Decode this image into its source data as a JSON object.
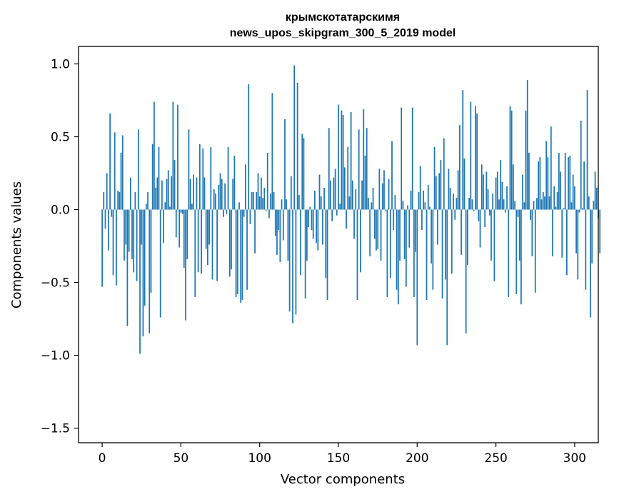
{
  "chart_data": {
    "type": "bar",
    "title_line1": "крымскотатарскимя",
    "title_line2": "news_upos_skipgram_300_5_2019 model",
    "xlabel": "Vector components",
    "ylabel": "Components values",
    "xlim": [
      -15,
      315
    ],
    "ylim": [
      -1.6,
      1.12
    ],
    "xticks": [
      0,
      50,
      100,
      150,
      200,
      250,
      300
    ],
    "xtick_labels": [
      "0",
      "50",
      "100",
      "150",
      "200",
      "250",
      "300"
    ],
    "yticks": [
      -1.5,
      -1.0,
      -0.5,
      0.0,
      0.5,
      1.0
    ],
    "ytick_labels": [
      "−1.5",
      "−1.0",
      "−0.5",
      "0.0",
      "0.5",
      "1.0"
    ],
    "bar_color": "#1f77b4",
    "values": [
      -0.53,
      0.12,
      -0.13,
      0.25,
      -0.28,
      0.66,
      -0.05,
      -0.45,
      0.53,
      -0.52,
      0.13,
      0.12,
      0.39,
      0.51,
      -0.35,
      -0.24,
      -0.8,
      -0.29,
      0.22,
      -0.34,
      -0.43,
      0.12,
      -0.49,
      0.55,
      -0.99,
      -0.24,
      -0.87,
      -0.66,
      0.04,
      0.12,
      -0.85,
      -0.57,
      0.45,
      0.74,
      0.15,
      0.22,
      0.43,
      -0.74,
      0.2,
      -0.23,
      0.05,
      0.21,
      0.27,
      0.02,
      0.23,
      0.74,
      0.34,
      -0.19,
      0.72,
      -0.26,
      -0.02,
      -0.03,
      -0.4,
      -0.76,
      -0.34,
      0.55,
      0.21,
      0.04,
      0.24,
      -0.6,
      0.22,
      -0.43,
      0.45,
      -0.44,
      0.42,
      0.22,
      -0.27,
      -0.38,
      -0.24,
      0.43,
      -0.48,
      0.14,
      0.11,
      -0.49,
      0.17,
      0.25,
      0.21,
      -0.05,
      0.18,
      -0.03,
      0.43,
      -0.46,
      -0.41,
      0.21,
      0.37,
      -0.6,
      -0.58,
      0.05,
      -0.64,
      -0.62,
      -0.05,
      0.31,
      -0.55,
      0.86,
      -0.1,
      0.12,
      0.12,
      -0.3,
      0.12,
      0.25,
      0.09,
      0.22,
      0.08,
      0.15,
      -0.01,
      0.39,
      -0.06,
      0.11,
      0.8,
      0.12,
      -0.18,
      -0.31,
      -0.14,
      -0.36,
      0.07,
      -0.21,
      0.62,
      0.07,
      -0.35,
      -0.7,
      0.23,
      -0.78,
      0.99,
      -0.72,
      0.87,
      0.1,
      -0.45,
      0.52,
      0.49,
      -0.61,
      -0.35,
      -0.12,
      0.02,
      -0.14,
      -0.2,
      0.13,
      -0.23,
      -0.28,
      0.24,
      0.09,
      -0.24,
      0.15,
      -0.47,
      -0.62,
      0.56,
      0.2,
      -0.08,
      0.22,
      0.28,
      -0.04,
      0.72,
      0.04,
      0.68,
      0.65,
      0.29,
      -0.13,
      0.43,
      0.09,
      0.67,
      0.2,
      -0.2,
      0.14,
      -0.62,
      0.55,
      -0.43,
      0.2,
      0.69,
      0.37,
      0.56,
      0.08,
      -0.32,
      0.05,
      0.15,
      -0.2,
      -0.28,
      -0.27,
      0.28,
      -0.35,
      0.18,
      0.27,
      -0.01,
      -0.6,
      0.21,
      -0.47,
      0.47,
      -0.14,
      0.1,
      -0.55,
      -0.65,
      -0.35,
      0.7,
      0.06,
      -0.34,
      -0.53,
      0.03,
      -0.26,
      0.13,
      0.7,
      -0.6,
      -0.29,
      -0.93,
      0.12,
      0.3,
      -0.14,
      0.13,
      0.05,
      -0.62,
      0.17,
      0.02,
      -0.37,
      -0.55,
      0.43,
      0.23,
      -0.24,
      0.25,
      0.34,
      -0.61,
      0.49,
      -0.48,
      -0.93,
      0.28,
      0.15,
      -0.44,
      0.11,
      -0.07,
      0.08,
      0.27,
      0.58,
      -0.31,
      0.82,
      0.35,
      -0.85,
      -0.38,
      0.08,
      0.74,
      0.07,
      -0.01,
      0.71,
      0.66,
      -0.08,
      -0.26,
      0.31,
      0.24,
      -0.12,
      0.26,
      0.14,
      -0.04,
      -0.35,
      0.11,
      -0.49,
      0.22,
      0.26,
      0.07,
      0.34,
      0.19,
      0.07,
      -0.02,
      0.16,
      -0.6,
      0.71,
      0.68,
      0.31,
      0.06,
      -0.58,
      -0.05,
      -0.35,
      -0.65,
      0.24,
      0.05,
      0.68,
      0.89,
      0.39,
      -0.07,
      -0.32,
      0.06,
      -0.57,
      0.08,
      0.33,
      0.36,
      0.07,
      0.12,
      0.09,
      0.47,
      0.36,
      0.09,
      0.57,
      -0.32,
      0.16,
      0.02,
      0.12,
      0.39,
      0.26,
      -0.33,
      0.01,
      0.39,
      -0.45,
      0.36,
      0.37,
      0.05,
      0.24,
      0.16,
      -0.3,
      -0.48,
      -0.02,
      0.61,
      0.01,
      0.33,
      -0.55,
      0.82,
      0.09,
      -0.74,
      -0.37,
      0.06,
      0.26,
      0.15,
      -0.06,
      -0.3
    ]
  }
}
